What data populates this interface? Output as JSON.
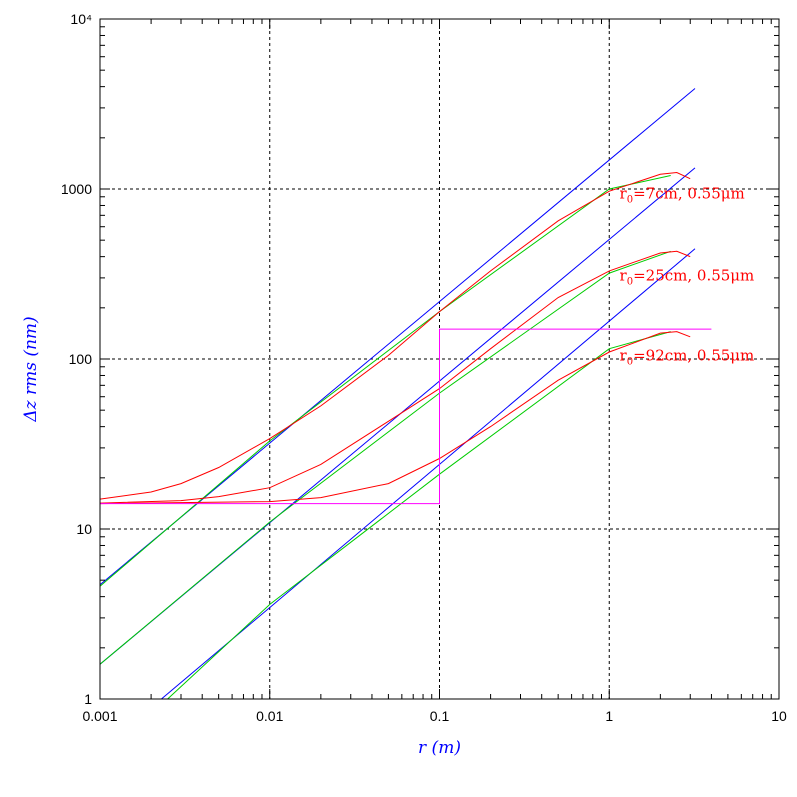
{
  "chart_data": {
    "type": "line",
    "xscale": "log",
    "yscale": "log",
    "xlim": [
      0.001,
      10
    ],
    "ylim": [
      1,
      10000
    ],
    "grid": true,
    "xlabel": "r (m)",
    "ylabel": "Δz rms (nm)",
    "x_ticks": [
      "0.001",
      "0.01",
      "0.1",
      "1",
      "10"
    ],
    "y_ticks": [
      "1",
      "10",
      "100",
      "1000",
      "10⁴"
    ],
    "colors": {
      "total": "#ff0000",
      "power_law": "#0000ff",
      "fit": "#00cc00",
      "spec": "#ff00ff",
      "grid": "#000000"
    },
    "annotations": [
      {
        "r0_label": "r",
        "sub": "0",
        "text": "=7cm, 0.55μm"
      },
      {
        "r0_label": "r",
        "sub": "0",
        "text": "=25cm, 0.55μm"
      },
      {
        "r0_label": "r",
        "sub": "0",
        "text": "=92cm, 0.55μm"
      }
    ],
    "series": [
      {
        "color": "#0000ff",
        "x": [
          0.001,
          3.2
        ],
        "y": [
          4.7,
          3900
        ]
      },
      {
        "color": "#0000ff",
        "x": [
          0.001,
          3.2
        ],
        "y": [
          1.6,
          1330
        ]
      },
      {
        "color": "#0000ff",
        "x": [
          0.0023,
          3.2
        ],
        "y": [
          1.0,
          445
        ]
      },
      {
        "color": "#00cc00",
        "x": [
          0.001,
          0.01,
          0.1,
          1,
          2.3
        ],
        "y": [
          4.6,
          33,
          190,
          1000,
          1200
        ]
      },
      {
        "color": "#00cc00",
        "x": [
          0.001,
          0.01,
          0.1,
          1,
          2.3
        ],
        "y": [
          1.6,
          11,
          63,
          320,
          430
        ]
      },
      {
        "color": "#00cc00",
        "x": [
          0.0025,
          0.01,
          0.1,
          1,
          2.3
        ],
        "y": [
          1.0,
          3.6,
          21,
          115,
          145
        ]
      },
      {
        "color": "#ff0000",
        "x": [
          0.001,
          0.002,
          0.003,
          0.005,
          0.01,
          0.02,
          0.05,
          0.1,
          0.2,
          0.5,
          1,
          2,
          2.5,
          3
        ],
        "y": [
          15,
          16.5,
          18.5,
          23,
          34,
          53,
          105,
          190,
          330,
          650,
          970,
          1220,
          1250,
          1150
        ]
      },
      {
        "color": "#ff0000",
        "x": [
          0.001,
          0.003,
          0.005,
          0.01,
          0.02,
          0.05,
          0.1,
          0.2,
          0.5,
          1,
          2,
          2.5,
          3
        ],
        "y": [
          14.2,
          14.7,
          15.5,
          17.5,
          24,
          43,
          67,
          115,
          230,
          330,
          420,
          430,
          400
        ]
      },
      {
        "color": "#ff0000",
        "x": [
          0.001,
          0.01,
          0.02,
          0.05,
          0.1,
          0.2,
          0.5,
          1,
          2,
          2.5,
          3
        ],
        "y": [
          14.1,
          14.5,
          15.3,
          18.5,
          26,
          40,
          75,
          110,
          142,
          145,
          135
        ]
      },
      {
        "color": "#ff00ff",
        "x": [
          0.001,
          0.1,
          0.1,
          4
        ],
        "y": [
          14.1,
          14.1,
          150,
          150
        ]
      }
    ]
  }
}
